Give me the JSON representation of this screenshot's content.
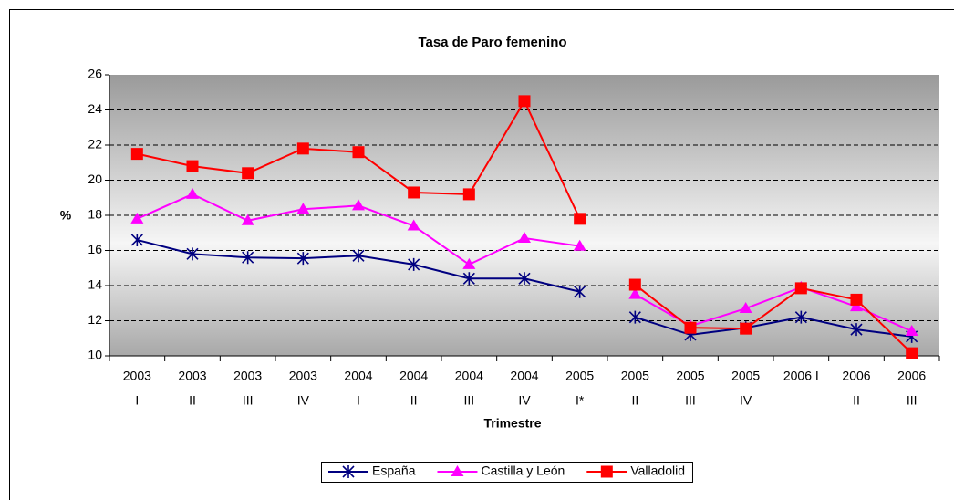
{
  "chart_data": {
    "type": "line",
    "title": "Tasa de Paro femenino",
    "x_label": "Trimestre",
    "y_label": "%",
    "categories": [
      [
        "2003",
        "I"
      ],
      [
        "2003",
        "II"
      ],
      [
        "2003",
        "III"
      ],
      [
        "2003",
        "IV"
      ],
      [
        "2004",
        "I"
      ],
      [
        "2004",
        "II"
      ],
      [
        "2004",
        "III"
      ],
      [
        "2004",
        "IV"
      ],
      [
        "2005",
        "I*"
      ],
      [
        "2005",
        "II"
      ],
      [
        "2005",
        "III"
      ],
      [
        "2005",
        "IV"
      ],
      "2006 I",
      [
        "2006",
        "II"
      ],
      [
        "2006",
        "III"
      ]
    ],
    "series": [
      {
        "name": "España",
        "color": "#000080",
        "marker": "asterisk",
        "values": [
          16.6,
          15.8,
          15.6,
          15.55,
          15.7,
          15.2,
          14.4,
          14.4,
          13.65,
          12.2,
          11.2,
          11.6,
          12.2,
          11.5,
          11.1
        ]
      },
      {
        "name": "Castilla y León",
        "color": "#ff00ff",
        "marker": "triangle",
        "values": [
          17.8,
          19.2,
          17.7,
          18.35,
          18.55,
          17.4,
          15.2,
          16.7,
          16.25,
          13.5,
          11.7,
          12.7,
          13.9,
          12.8,
          11.4
        ]
      },
      {
        "name": "Valladolid",
        "color": "#ff0000",
        "marker": "square",
        "values": [
          21.5,
          20.8,
          20.4,
          21.8,
          21.6,
          19.3,
          19.2,
          24.5,
          17.8,
          14.05,
          11.6,
          11.55,
          13.85,
          13.2,
          10.15
        ]
      }
    ],
    "line_breaks": [
      9
    ],
    "ylim": [
      10,
      26
    ],
    "yticks": [
      10,
      12,
      14,
      16,
      18,
      20,
      22,
      24,
      26
    ],
    "grid": true,
    "legend": "bottom"
  }
}
